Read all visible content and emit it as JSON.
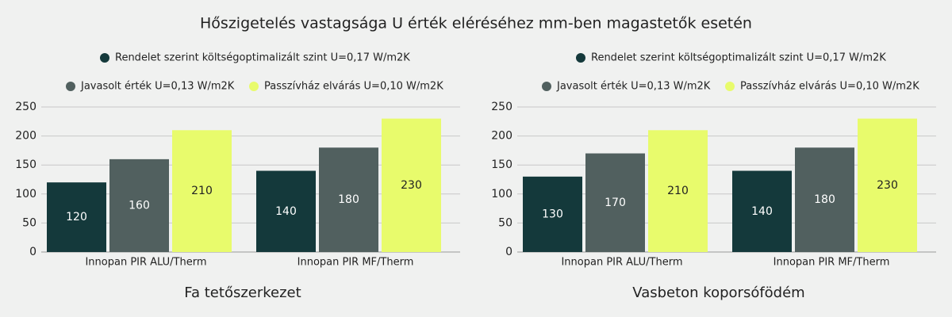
{
  "title": "Hőszigetelés vastagsága U érték eléréséhez mm-ben magastetők esetén",
  "chart_data": [
    {
      "type": "bar",
      "title": "Fa tetőszerkezet",
      "categories": [
        "Innopan PIR ALU/Therm",
        "Innopan PIR MF/Therm"
      ],
      "series": [
        {
          "name": "Rendelet szerint költségoptimalizált szint U=0,17 W/m2K",
          "color": "#14393b",
          "values": [
            120,
            140
          ]
        },
        {
          "name": "Javasolt érték U=0,13 W/m2K",
          "color": "#51605f",
          "values": [
            160,
            180
          ]
        },
        {
          "name": "Passzívház elvárás U=0,10 W/m2K",
          "color": "#e8fb6c",
          "values": [
            210,
            230
          ]
        }
      ],
      "ylim": [
        0,
        250
      ],
      "yticks": [
        0,
        50,
        100,
        150,
        200,
        250
      ],
      "grid": true
    },
    {
      "type": "bar",
      "title": "Vasbeton koporsófödém",
      "categories": [
        "Innopan PIR ALU/Therm",
        "Innopan PIR MF/Therm"
      ],
      "series": [
        {
          "name": "Rendelet szerint költségoptimalizált szint U=0,17 W/m2K",
          "color": "#14393b",
          "values": [
            130,
            140
          ]
        },
        {
          "name": "Javasolt érték U=0,13 W/m2K",
          "color": "#51605f",
          "values": [
            170,
            180
          ]
        },
        {
          "name": "Passzívház elvárás U=0,10 W/m2K",
          "color": "#e8fb6c",
          "values": [
            210,
            230
          ]
        }
      ],
      "ylim": [
        0,
        250
      ],
      "yticks": [
        0,
        50,
        100,
        150,
        200,
        250
      ],
      "grid": true
    }
  ]
}
